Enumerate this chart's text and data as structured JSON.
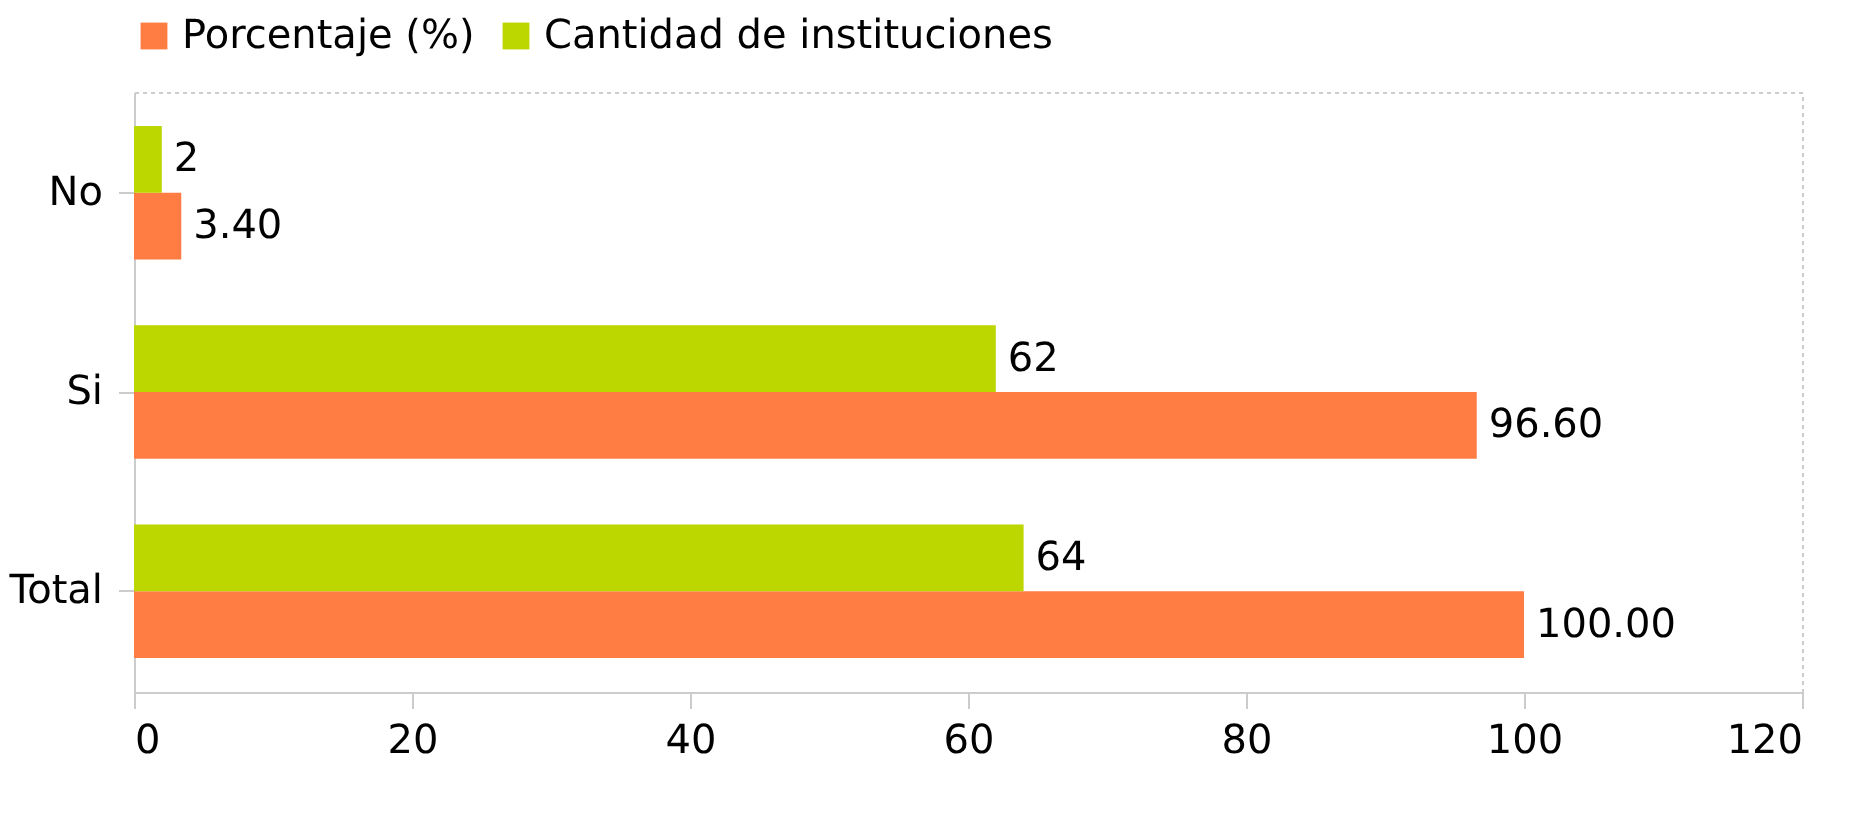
{
  "chart_data": {
    "type": "bar",
    "orientation": "horizontal",
    "categories": [
      "No",
      "Si",
      "Total"
    ],
    "series": [
      {
        "name": "Porcentaje (%)",
        "color": "#ff7c43",
        "values": [
          3.4,
          96.6,
          100
        ],
        "value_labels": [
          "3.40",
          "96.60",
          "100.00"
        ]
      },
      {
        "name": "Cantidad de instituciones",
        "color": "#bcd600",
        "values": [
          2,
          62,
          64
        ],
        "value_labels": [
          "2",
          "62",
          "64"
        ]
      }
    ],
    "xlim": [
      0,
      120
    ],
    "xticks": [
      0,
      20,
      40,
      60,
      80,
      100,
      120
    ],
    "grid": false,
    "legend": "top"
  }
}
